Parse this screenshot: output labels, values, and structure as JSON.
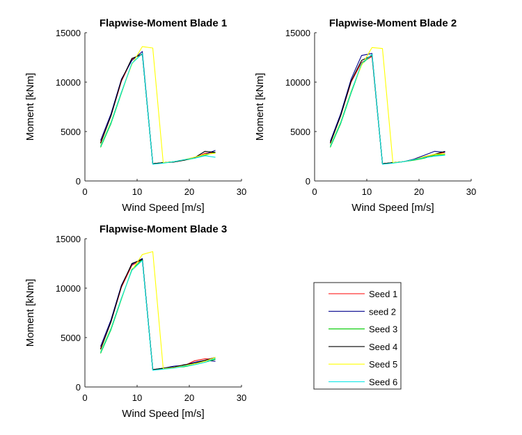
{
  "chart_data": [
    {
      "type": "line",
      "title": "Flapwise-Moment Blade 1",
      "xlabel": "Wind Speed [m/s]",
      "ylabel": "Moment [kNm]",
      "xlim": [
        0,
        30
      ],
      "ylim": [
        0,
        15000
      ],
      "xticks": [
        "0",
        "10",
        "20",
        "30"
      ],
      "yticks": [
        "0",
        "5000",
        "10000",
        "15000"
      ],
      "series": [
        {
          "name": "Seed 1",
          "color": "#ff0000",
          "x": [
            3,
            5,
            7,
            9,
            11,
            13,
            15,
            17,
            19,
            21,
            23,
            25
          ],
          "y": [
            3900,
            6600,
            10100,
            12300,
            12900,
            1750,
            1850,
            1950,
            2100,
            2350,
            2800,
            2900
          ]
        },
        {
          "name": "seed 2",
          "color": "#00008b",
          "x": [
            3,
            5,
            7,
            9,
            11,
            13,
            15,
            17,
            19,
            21,
            23,
            25
          ],
          "y": [
            4100,
            6800,
            10300,
            12200,
            13100,
            1750,
            1850,
            1950,
            2150,
            2400,
            2700,
            3100
          ]
        },
        {
          "name": "Seed 3",
          "color": "#00cc00",
          "x": [
            3,
            5,
            7,
            9,
            11,
            13,
            15,
            17,
            19,
            21,
            23,
            25
          ],
          "y": [
            3400,
            5800,
            8900,
            11900,
            12900,
            1750,
            1850,
            1950,
            2100,
            2300,
            2600,
            2900
          ]
        },
        {
          "name": "Seed 4",
          "color": "#000000",
          "x": [
            3,
            5,
            7,
            9,
            11,
            13,
            15,
            17,
            19,
            21,
            23,
            25
          ],
          "y": [
            3800,
            6600,
            10200,
            12400,
            12800,
            1750,
            1850,
            1900,
            2100,
            2350,
            3000,
            2900
          ]
        },
        {
          "name": "Seed 5",
          "color": "#ffff00",
          "x": [
            3,
            5,
            7,
            9,
            11,
            13,
            15,
            17,
            19,
            21,
            23,
            25
          ],
          "y": [
            3600,
            6000,
            9000,
            11800,
            13600,
            13450,
            1850,
            1950,
            2150,
            2400,
            2700,
            2800
          ]
        },
        {
          "name": "Seed 6",
          "color": "#00e5e5",
          "x": [
            3,
            5,
            7,
            9,
            11,
            13,
            15,
            17,
            19,
            21,
            23,
            25
          ],
          "y": [
            3500,
            5900,
            9000,
            11900,
            12900,
            1700,
            1800,
            1950,
            2150,
            2300,
            2550,
            2400
          ]
        }
      ]
    },
    {
      "type": "line",
      "title": "Flapwise-Moment Blade 2",
      "xlabel": "Wind Speed [m/s]",
      "ylabel": "Moment [kNm]",
      "xlim": [
        0,
        30
      ],
      "ylim": [
        0,
        15000
      ],
      "xticks": [
        "0",
        "10",
        "20",
        "30"
      ],
      "yticks": [
        "0",
        "5000",
        "10000",
        "15000"
      ],
      "series": [
        {
          "name": "Seed 1",
          "color": "#ff0000",
          "x": [
            3,
            5,
            7,
            9,
            11,
            13,
            15,
            17,
            19,
            21,
            23,
            25
          ],
          "y": [
            3900,
            6600,
            10000,
            12000,
            12600,
            1750,
            1850,
            1950,
            2150,
            2450,
            2700,
            2900
          ]
        },
        {
          "name": "seed 2",
          "color": "#00008b",
          "x": [
            3,
            5,
            7,
            9,
            11,
            13,
            15,
            17,
            19,
            21,
            23,
            25
          ],
          "y": [
            4000,
            6800,
            10300,
            12700,
            12900,
            1750,
            1850,
            1950,
            2200,
            2600,
            3000,
            2900
          ]
        },
        {
          "name": "Seed 3",
          "color": "#00cc00",
          "x": [
            3,
            5,
            7,
            9,
            11,
            13,
            15,
            17,
            19,
            21,
            23,
            25
          ],
          "y": [
            3400,
            5800,
            8900,
            11800,
            12800,
            1750,
            1850,
            1950,
            2100,
            2300,
            2600,
            2700
          ]
        },
        {
          "name": "Seed 4",
          "color": "#000000",
          "x": [
            3,
            5,
            7,
            9,
            11,
            13,
            15,
            17,
            19,
            21,
            23,
            25
          ],
          "y": [
            3800,
            6600,
            10100,
            12200,
            12700,
            1750,
            1850,
            1950,
            2150,
            2400,
            2700,
            3000
          ]
        },
        {
          "name": "Seed 5",
          "color": "#ffff00",
          "x": [
            3,
            5,
            7,
            9,
            11,
            13,
            15,
            17,
            19,
            21,
            23,
            25
          ],
          "y": [
            3600,
            6000,
            9100,
            11700,
            13500,
            13400,
            1850,
            1950,
            2150,
            2450,
            2700,
            2750
          ]
        },
        {
          "name": "Seed 6",
          "color": "#00e5e5",
          "x": [
            3,
            5,
            7,
            9,
            11,
            13,
            15,
            17,
            19,
            21,
            23,
            25
          ],
          "y": [
            3500,
            5900,
            9000,
            11900,
            12800,
            1700,
            1800,
            1950,
            2150,
            2350,
            2500,
            2600
          ]
        }
      ]
    },
    {
      "type": "line",
      "title": "Flapwise-Moment Blade 3",
      "xlabel": "Wind Speed [m/s]",
      "ylabel": "Moment [kNm]",
      "xlim": [
        0,
        30
      ],
      "ylim": [
        0,
        15000
      ],
      "xticks": [
        "0",
        "10",
        "20",
        "30"
      ],
      "yticks": [
        "0",
        "5000",
        "10000",
        "15000"
      ],
      "series": [
        {
          "name": "Seed 1",
          "color": "#ff0000",
          "x": [
            3,
            5,
            7,
            9,
            11,
            13,
            15,
            17,
            19,
            21,
            23,
            25
          ],
          "y": [
            3900,
            6600,
            10100,
            12300,
            12900,
            1750,
            1850,
            1950,
            2150,
            2650,
            2850,
            2800
          ]
        },
        {
          "name": "seed 2",
          "color": "#00008b",
          "x": [
            3,
            5,
            7,
            9,
            11,
            13,
            15,
            17,
            19,
            21,
            23,
            25
          ],
          "y": [
            4100,
            6800,
            10300,
            12400,
            13000,
            1750,
            1900,
            2100,
            2200,
            2500,
            2700,
            2600
          ]
        },
        {
          "name": "Seed 3",
          "color": "#00cc00",
          "x": [
            3,
            5,
            7,
            9,
            11,
            13,
            15,
            17,
            19,
            21,
            23,
            25
          ],
          "y": [
            3400,
            5800,
            8900,
            11900,
            12900,
            1750,
            1850,
            1950,
            2050,
            2250,
            2500,
            2800
          ]
        },
        {
          "name": "Seed 4",
          "color": "#000000",
          "x": [
            3,
            5,
            7,
            9,
            11,
            13,
            15,
            17,
            19,
            21,
            23,
            25
          ],
          "y": [
            3800,
            6600,
            10200,
            12500,
            12900,
            1750,
            1900,
            2000,
            2250,
            2400,
            2700,
            3000
          ]
        },
        {
          "name": "Seed 5",
          "color": "#ffff00",
          "x": [
            3,
            5,
            7,
            9,
            11,
            13,
            15,
            17,
            19,
            21,
            23,
            25
          ],
          "y": [
            3600,
            6000,
            9000,
            11800,
            13400,
            13700,
            1850,
            1950,
            2150,
            2350,
            2600,
            3000
          ]
        },
        {
          "name": "Seed 6",
          "color": "#00e5e5",
          "x": [
            3,
            5,
            7,
            9,
            11,
            13,
            15,
            17,
            19,
            21,
            23,
            25
          ],
          "y": [
            3500,
            5900,
            9000,
            11800,
            12800,
            1700,
            1800,
            1900,
            2100,
            2250,
            2500,
            2900
          ]
        }
      ]
    }
  ],
  "legend": {
    "entries": [
      {
        "label": "Seed 1",
        "color": "#ff0000"
      },
      {
        "label": "seed 2",
        "color": "#00008b"
      },
      {
        "label": "Seed 3",
        "color": "#00cc00"
      },
      {
        "label": "Seed 4",
        "color": "#000000"
      },
      {
        "label": "Seed 5",
        "color": "#ffff00"
      },
      {
        "label": "Seed 6",
        "color": "#00e5e5"
      }
    ]
  }
}
